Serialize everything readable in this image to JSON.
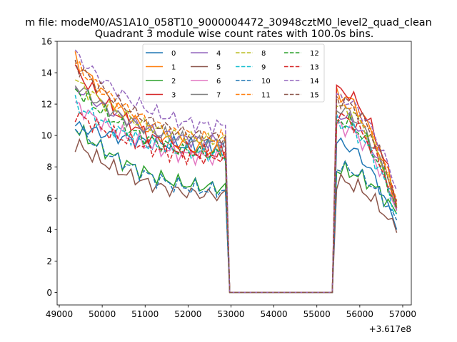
{
  "chart_data": {
    "type": "line",
    "suptitle": "m file: modeM0/AS1A10_058T10_9000004472_30948cztM0_level2_quad_clean",
    "title": "Quadrant 3 module wise count rates with 100.0s bins.",
    "xlabel": "",
    "ylabel": "",
    "x_offset_label": "+3.617e8",
    "xlim": [
      48950,
      57200
    ],
    "ylim": [
      -0.8,
      16
    ],
    "x_ticks": [
      49000,
      50000,
      51000,
      52000,
      53000,
      54000,
      55000,
      56000,
      57000
    ],
    "y_ticks": [
      0,
      2,
      4,
      6,
      8,
      10,
      12,
      14,
      16
    ],
    "grid": false,
    "legend_position": "upper-center",
    "legend_columns": 4,
    "segments": [
      {
        "x_start": 49370,
        "x_end": 52870,
        "step": 100
      },
      {
        "x_start": 55460,
        "x_end": 56860,
        "step": 100
      }
    ],
    "gap": {
      "x_start": 52970,
      "x_end": 55360,
      "value": 0
    },
    "series": [
      {
        "name": "0",
        "color": "#1f77b4",
        "dash": "solid",
        "seg1": [
          10.6,
          9.3
        ],
        "seg2": [
          9.5,
          4.0
        ]
      },
      {
        "name": "1",
        "color": "#ff7f0e",
        "dash": "solid",
        "seg1": [
          14.9,
          9.0
        ],
        "seg2": [
          12.6,
          5.5
        ]
      },
      {
        "name": "2",
        "color": "#2ca02c",
        "dash": "solid",
        "seg1": [
          10.5,
          6.7
        ],
        "seg2": [
          7.8,
          5.0
        ]
      },
      {
        "name": "3",
        "color": "#d62728",
        "dash": "solid",
        "seg1": [
          14.2,
          8.8
        ],
        "seg2": [
          12.9,
          5.8
        ]
      },
      {
        "name": "4",
        "color": "#9467bd",
        "dash": "solid",
        "seg1": [
          13.1,
          9.6
        ],
        "seg2": [
          11.3,
          5.3
        ]
      },
      {
        "name": "5",
        "color": "#8c564b",
        "dash": "solid",
        "seg1": [
          9.5,
          6.2
        ],
        "seg2": [
          7.1,
          3.8
        ]
      },
      {
        "name": "6",
        "color": "#e377c2",
        "dash": "solid",
        "seg1": [
          12.0,
          8.6
        ],
        "seg2": [
          10.6,
          5.2
        ]
      },
      {
        "name": "7",
        "color": "#7f7f7f",
        "dash": "solid",
        "seg1": [
          13.3,
          9.5
        ],
        "seg2": [
          11.7,
          5.4
        ]
      },
      {
        "name": "8",
        "color": "#bcbd22",
        "dash": "dashed",
        "seg1": [
          13.5,
          9.7
        ],
        "seg2": [
          11.8,
          5.6
        ]
      },
      {
        "name": "9",
        "color": "#17becf",
        "dash": "dashed",
        "seg1": [
          12.0,
          8.8
        ],
        "seg2": [
          10.8,
          5.0
        ]
      },
      {
        "name": "10",
        "color": "#1f77b4",
        "dash": "dashed",
        "seg1": [
          10.6,
          6.5
        ],
        "seg2": [
          8.0,
          4.6
        ]
      },
      {
        "name": "11",
        "color": "#ff7f0e",
        "dash": "dashed",
        "seg1": [
          14.6,
          9.8
        ],
        "seg2": [
          12.2,
          5.9
        ]
      },
      {
        "name": "12",
        "color": "#2ca02c",
        "dash": "dashed",
        "seg1": [
          13.0,
          8.8
        ],
        "seg2": [
          11.0,
          5.3
        ]
      },
      {
        "name": "13",
        "color": "#d62728",
        "dash": "dashed",
        "seg1": [
          11.4,
          8.6
        ],
        "seg2": [
          11.2,
          5.4
        ]
      },
      {
        "name": "14",
        "color": "#9467bd",
        "dash": "dashed",
        "seg1": [
          15.2,
          10.6
        ],
        "seg2": [
          12.4,
          6.5
        ]
      },
      {
        "name": "15",
        "color": "#8c564b",
        "dash": "dashed",
        "seg1": [
          14.6,
          9.9
        ],
        "seg2": [
          12.3,
          5.7
        ]
      }
    ]
  }
}
